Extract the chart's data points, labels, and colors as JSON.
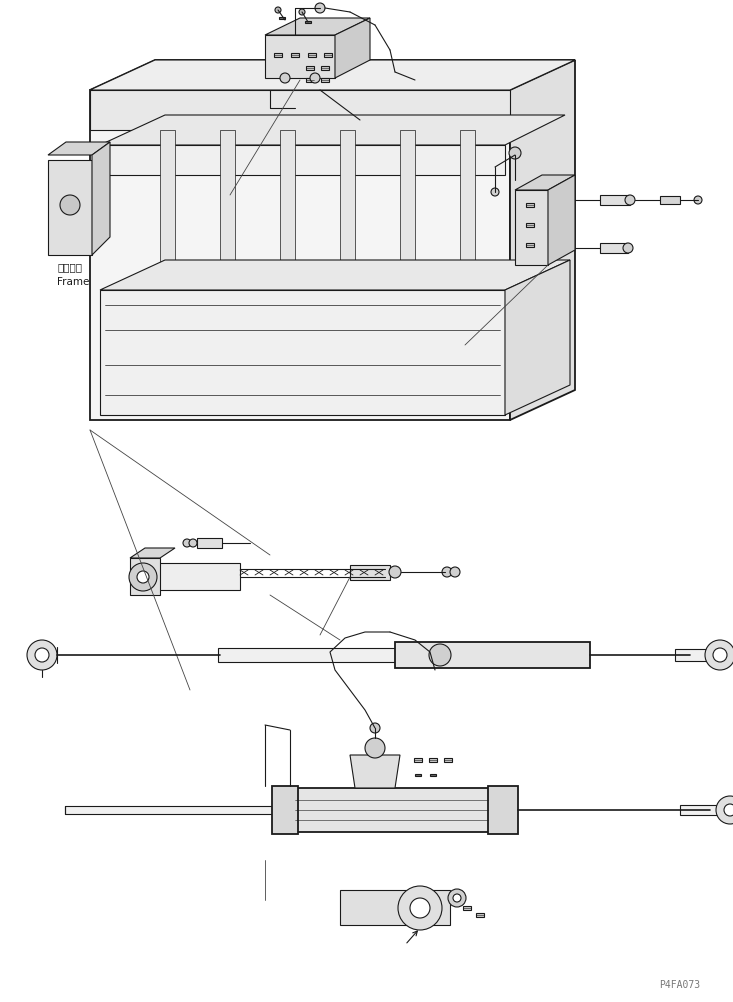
{
  "bg_color": "#ffffff",
  "line_color": "#1a1a1a",
  "lw": 0.8,
  "tlw": 1.3,
  "fig_width": 7.33,
  "fig_height": 10.02,
  "watermark": "P4FA073",
  "label_frame_jp": "フレーム",
  "label_frame_en": "Frame"
}
